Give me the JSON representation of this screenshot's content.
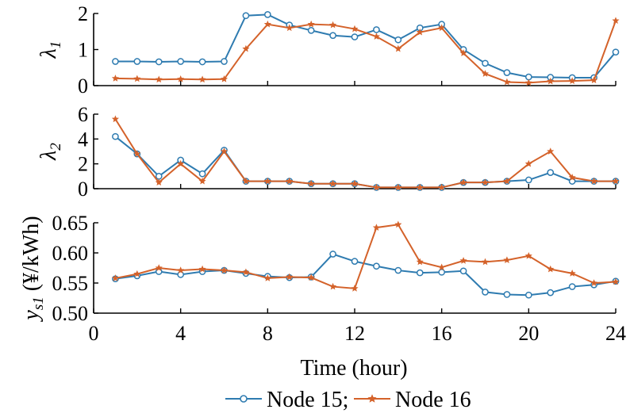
{
  "chart_data": {
    "type": "line",
    "x": [
      1,
      2,
      3,
      4,
      5,
      6,
      7,
      8,
      9,
      10,
      11,
      12,
      13,
      14,
      15,
      16,
      17,
      18,
      19,
      20,
      21,
      22,
      23,
      24
    ],
    "xlabel": "Time (hour)",
    "xlim": [
      0,
      24
    ],
    "xticks": [
      0,
      4,
      8,
      12,
      16,
      20,
      24
    ],
    "legend": {
      "placement": "bottom-center",
      "entries": [
        "Node 15;",
        "Node 16"
      ]
    },
    "colors": {
      "node15": "#2e7bb0",
      "node16": "#d4622a"
    },
    "panels": [
      {
        "ylabel_main": "λ",
        "ylabel_sub": "1",
        "ylabel_unit": "",
        "ylim": [
          0,
          2
        ],
        "yticks": [
          0,
          1,
          2
        ],
        "ytick_labels": [
          "0",
          "1",
          "2"
        ],
        "series": [
          {
            "values": [
              0.67,
              0.67,
              0.66,
              0.67,
              0.66,
              0.67,
              1.94,
              1.97,
              1.68,
              1.53,
              1.39,
              1.35,
              1.55,
              1.27,
              1.6,
              1.7,
              1.0,
              0.62,
              0.36,
              0.24,
              0.23,
              0.22,
              0.22,
              0.93
            ]
          },
          {
            "values": [
              0.2,
              0.19,
              0.17,
              0.18,
              0.17,
              0.18,
              1.02,
              1.7,
              1.6,
              1.7,
              1.68,
              1.57,
              1.36,
              1.02,
              1.48,
              1.6,
              0.9,
              0.33,
              0.1,
              0.08,
              0.12,
              0.13,
              0.15,
              1.8
            ]
          }
        ]
      },
      {
        "ylabel_main": "λ",
        "ylabel_sub": "2",
        "ylabel_unit": "",
        "ylim": [
          0,
          6
        ],
        "yticks": [
          0,
          2,
          4,
          6
        ],
        "ytick_labels": [
          "0",
          "2",
          "4",
          "6"
        ],
        "series": [
          {
            "values": [
              4.2,
              2.8,
              1.0,
              2.3,
              1.2,
              3.1,
              0.6,
              0.6,
              0.6,
              0.4,
              0.4,
              0.4,
              0.1,
              0.1,
              0.1,
              0.1,
              0.5,
              0.5,
              0.6,
              0.7,
              1.3,
              0.6,
              0.6,
              0.6
            ]
          },
          {
            "values": [
              5.6,
              2.8,
              0.5,
              2.0,
              0.6,
              3.0,
              0.6,
              0.6,
              0.6,
              0.4,
              0.4,
              0.4,
              0.1,
              0.1,
              0.1,
              0.1,
              0.5,
              0.5,
              0.6,
              2.0,
              3.0,
              0.9,
              0.6,
              0.6
            ]
          }
        ]
      },
      {
        "ylabel_main": "y",
        "ylabel_sub": "s1",
        "ylabel_unit": " (¥/kWh)",
        "ylim": [
          0.5,
          0.65
        ],
        "yticks": [
          0.5,
          0.55,
          0.6,
          0.65
        ],
        "ytick_labels": [
          "0.50",
          "0.55",
          "0.60",
          "0.65"
        ],
        "series": [
          {
            "values": [
              0.557,
              0.562,
              0.569,
              0.564,
              0.569,
              0.571,
              0.566,
              0.561,
              0.559,
              0.56,
              0.598,
              0.586,
              0.578,
              0.571,
              0.567,
              0.568,
              0.57,
              0.535,
              0.531,
              0.53,
              0.534,
              0.544,
              0.547,
              0.553
            ]
          },
          {
            "values": [
              0.558,
              0.565,
              0.575,
              0.571,
              0.573,
              0.571,
              0.568,
              0.558,
              0.56,
              0.559,
              0.544,
              0.541,
              0.642,
              0.647,
              0.585,
              0.576,
              0.587,
              0.585,
              0.588,
              0.595,
              0.573,
              0.566,
              0.55,
              0.552
            ]
          }
        ]
      }
    ]
  }
}
